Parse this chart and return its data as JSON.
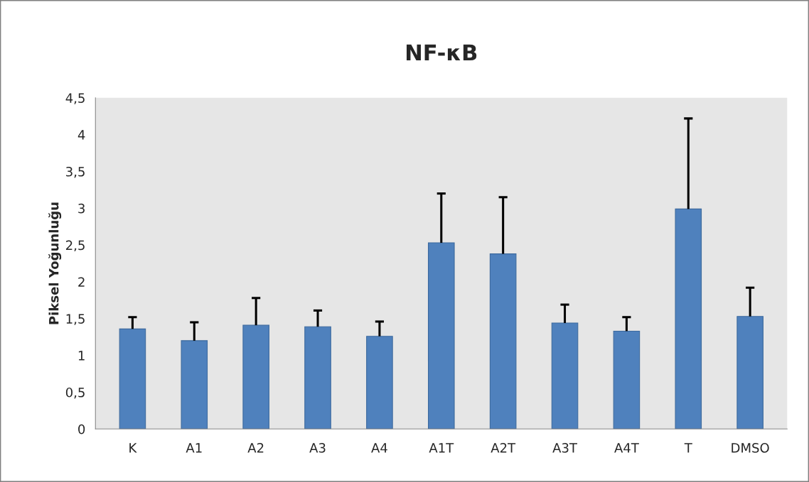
{
  "chart_data": {
    "type": "bar",
    "title": "NF-κB",
    "ylabel": "Piksel Yoğunluğu",
    "categories": [
      "K",
      "A1",
      "A2",
      "A3",
      "A4",
      "A1T",
      "A2T",
      "A3T",
      "A4T",
      "T",
      "DMSO"
    ],
    "values": [
      1.36,
      1.2,
      1.41,
      1.39,
      1.26,
      2.53,
      2.38,
      1.44,
      1.33,
      2.99,
      1.53
    ],
    "errors": [
      [
        1.36,
        1.52
      ],
      [
        1.2,
        1.45
      ],
      [
        1.41,
        1.78
      ],
      [
        1.39,
        1.61
      ],
      [
        1.26,
        1.46
      ],
      [
        2.53,
        3.2
      ],
      [
        2.38,
        3.15
      ],
      [
        1.44,
        1.69
      ],
      [
        1.33,
        1.52
      ],
      [
        2.99,
        4.22
      ],
      [
        1.53,
        1.92
      ]
    ],
    "color": "#4f81bd",
    "ylim": [
      0,
      4.5
    ],
    "yticks": [
      0,
      {
        "value": 0.5,
        "label": "0,5"
      },
      1,
      {
        "value": 1.5,
        "label": "1,5"
      },
      2,
      {
        "value": 2.5,
        "label": "2,5"
      },
      3,
      {
        "value": 3.5,
        "label": "3,5"
      },
      4,
      {
        "value": 4.5,
        "label": "4,5"
      }
    ],
    "grid": false,
    "legend": false
  }
}
